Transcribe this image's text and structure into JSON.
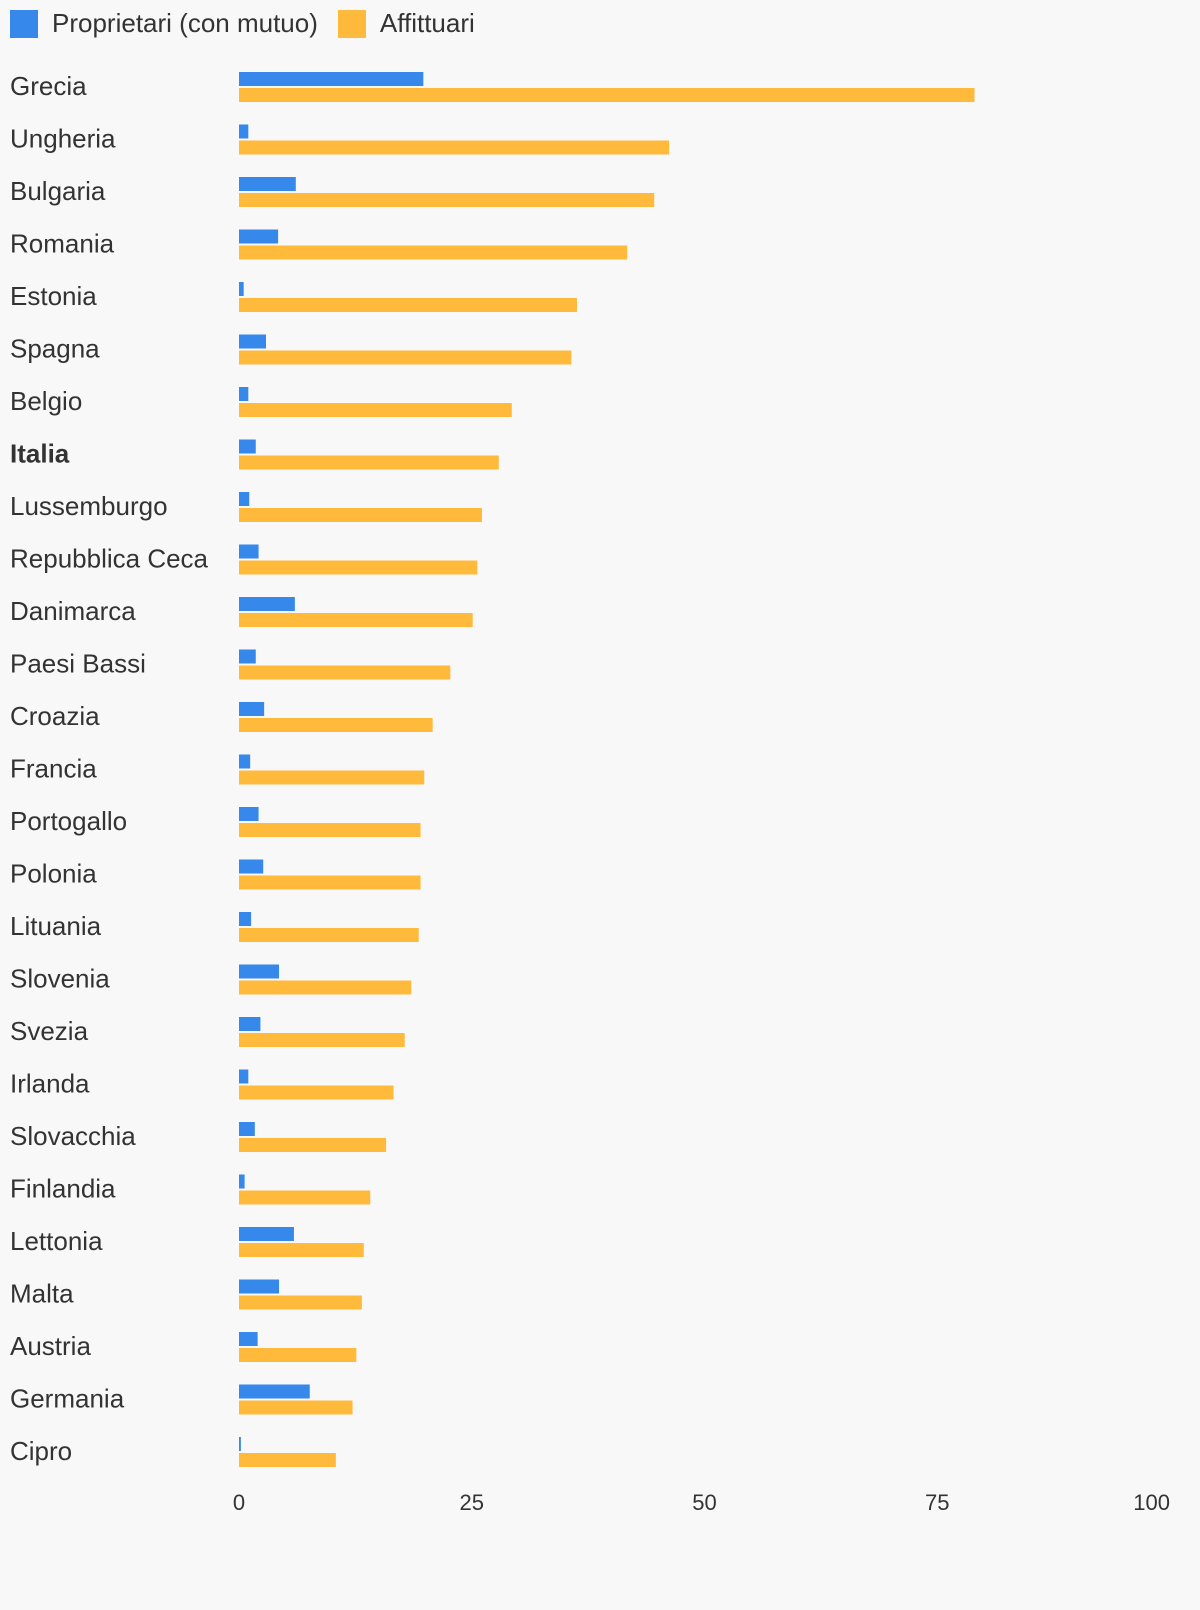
{
  "colors": {
    "owners": "#3688eb",
    "renters": "#ffb93b"
  },
  "chart_data": {
    "type": "bar",
    "orientation": "horizontal",
    "highlight_category": "Italia",
    "categories": [
      "Grecia",
      "Ungheria",
      "Bulgaria",
      "Romania",
      "Estonia",
      "Spagna",
      "Belgio",
      "Italia",
      "Lussemburgo",
      "Repubblica Ceca",
      "Danimarca",
      "Paesi Bassi",
      "Croazia",
      "Francia",
      "Portogallo",
      "Polonia",
      "Lituania",
      "Slovenia",
      "Svezia",
      "Irlanda",
      "Slovacchia",
      "Finlandia",
      "Lettonia",
      "Malta",
      "Austria",
      "Germania",
      "Cipro"
    ],
    "series": [
      {
        "name": "Proprietari (con mutuo)",
        "color": "#3688eb",
        "values": [
          19.8,
          1.0,
          6.1,
          4.2,
          0.5,
          2.9,
          1.0,
          1.8,
          1.1,
          2.1,
          6.0,
          1.8,
          2.7,
          1.2,
          2.1,
          2.6,
          1.3,
          4.3,
          2.3,
          1.0,
          1.7,
          0.6,
          5.9,
          4.3,
          2.0,
          7.6,
          0.2
        ]
      },
      {
        "name": "Affittuari",
        "color": "#ffb93b",
        "values": [
          79.0,
          46.2,
          44.6,
          41.7,
          36.3,
          35.7,
          29.3,
          27.9,
          26.1,
          25.6,
          25.1,
          22.7,
          20.8,
          19.9,
          19.5,
          19.5,
          19.3,
          18.5,
          17.8,
          16.6,
          15.8,
          14.1,
          13.4,
          13.2,
          12.6,
          12.2,
          10.4
        ]
      }
    ],
    "xlim": [
      0,
      100
    ],
    "xticks": [
      "0",
      "25",
      "50",
      "75",
      "100"
    ],
    "legend_position": "top-left",
    "grid": false
  }
}
